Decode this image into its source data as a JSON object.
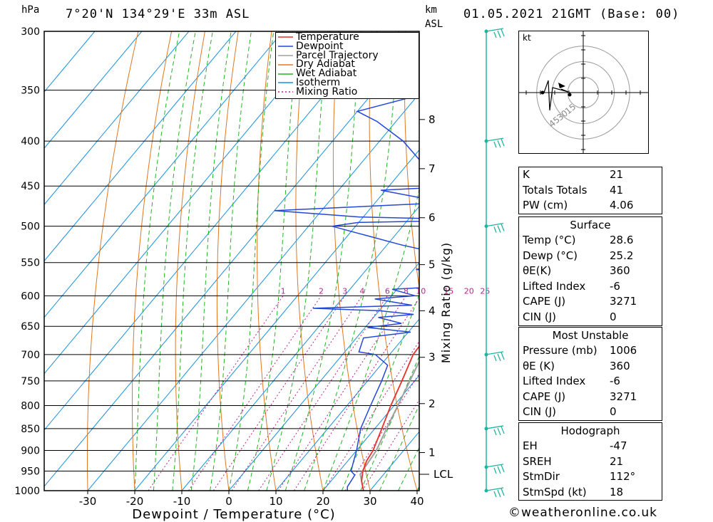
{
  "header": {
    "hpa_label": "hPa",
    "location": "7°20'N  134°29'E  33m  ASL",
    "km_label": "km",
    "asl_label": "ASL",
    "datetime": "01.05.2021  21GMT  (Base: 00)"
  },
  "chart_data": {
    "type": "skew-t log-p sounding",
    "ylabel_left": "hPa",
    "xlabel": "Dewpoint / Temperature (°C)",
    "ylabel_right": "Mixing Ratio (g/kg)",
    "pressure_ticks": [
      300,
      350,
      400,
      450,
      500,
      550,
      600,
      650,
      700,
      750,
      800,
      850,
      900,
      950,
      1000
    ],
    "temperature_ticks": [
      -30,
      -20,
      -10,
      0,
      10,
      20,
      30,
      40
    ],
    "height_ticks_km": [
      {
        "km": "1",
        "p": 905
      },
      {
        "km": "2",
        "p": 796
      },
      {
        "km": "3",
        "p": 705
      },
      {
        "km": "4",
        "p": 624
      },
      {
        "km": "5",
        "p": 553
      },
      {
        "km": "6",
        "p": 489
      },
      {
        "km": "7",
        "p": 430
      },
      {
        "km": "8",
        "p": 378
      }
    ],
    "lcl": {
      "label": "LCL",
      "p": 958
    },
    "mixing_ratio_labels": [
      "1",
      "2",
      "3",
      "4",
      "6",
      "8",
      "10",
      "15",
      "20",
      "25"
    ],
    "mixing_ratio_values": [
      1,
      2,
      3,
      4,
      6,
      8,
      10,
      15,
      20,
      25
    ],
    "legend": [
      "Temperature",
      "Dewpoint",
      "Parcel Trajectory",
      "Dry Adiabat",
      "Wet Adiabat",
      "Isotherm",
      "Mixing Ratio"
    ],
    "colors": {
      "temperature": "#e8302c",
      "dewpoint": "#2447d8",
      "parcel": "#a0a0a0",
      "dry_adiabat": "#e07820",
      "wet_adiabat": "#22b422",
      "isotherm": "#1890e0",
      "mixing_ratio": "#c0208c",
      "wind": "#20b4a0"
    },
    "temperature_profile": [
      [
        1000,
        28.6
      ],
      [
        975,
        26.5
      ],
      [
        950,
        25.0
      ],
      [
        925,
        24.0
      ],
      [
        900,
        23.5
      ],
      [
        850,
        21.5
      ],
      [
        800,
        19.3
      ],
      [
        750,
        17.3
      ],
      [
        700,
        15.0
      ],
      [
        680,
        14.8
      ],
      [
        660,
        13.5
      ],
      [
        640,
        13.8
      ],
      [
        620,
        13.0
      ],
      [
        600,
        11.0
      ],
      [
        580,
        9.8
      ],
      [
        560,
        8.2
      ],
      [
        540,
        6.6
      ],
      [
        520,
        6.0
      ],
      [
        500,
        5.0
      ],
      [
        480,
        3.2
      ],
      [
        460,
        1.8
      ],
      [
        440,
        0.0
      ],
      [
        420,
        -2.0
      ],
      [
        400,
        -4.0
      ],
      [
        380,
        -6.0
      ],
      [
        360,
        -7.5
      ]
    ],
    "dewpoint_profile": [
      [
        1000,
        25.2
      ],
      [
        990,
        24.5
      ],
      [
        960,
        24.0
      ],
      [
        950,
        22.5
      ],
      [
        930,
        21.5
      ],
      [
        900,
        20.0
      ],
      [
        850,
        17.0
      ],
      [
        800,
        15.0
      ],
      [
        750,
        13.0
      ],
      [
        720,
        11.5
      ],
      [
        700,
        7.0
      ],
      [
        695,
        3.0
      ],
      [
        670,
        1.5
      ],
      [
        660,
        10.5
      ],
      [
        652,
        0.5
      ],
      [
        645,
        7.0
      ],
      [
        635,
        1.0
      ],
      [
        630,
        8.0
      ],
      [
        624,
        0.0
      ],
      [
        620,
        -14.5
      ],
      [
        615,
        6.0
      ],
      [
        605,
        -3.0
      ],
      [
        600,
        5.0
      ],
      [
        590,
        -1.0
      ],
      [
        585,
        10.0
      ],
      [
        575,
        3.0
      ],
      [
        565,
        8.0
      ],
      [
        560,
        0.5
      ],
      [
        545,
        11.0
      ],
      [
        540,
        5.0
      ],
      [
        525,
        -7.0
      ],
      [
        500,
        -25.0
      ],
      [
        495,
        -20.0
      ],
      [
        492,
        7.0
      ],
      [
        488,
        -21.0
      ],
      [
        480,
        -40.0
      ],
      [
        470,
        -5.0
      ],
      [
        455,
        -21.0
      ],
      [
        450,
        -4.0
      ],
      [
        430,
        -15.0
      ],
      [
        400,
        -25.0
      ],
      [
        380,
        -34.0
      ],
      [
        370,
        -40.0
      ],
      [
        355,
        -30.0
      ],
      [
        340,
        -50.0
      ],
      [
        300,
        -65.0
      ]
    ],
    "parcel_profile": [
      [
        1000,
        28.6
      ],
      [
        958,
        25.0
      ],
      [
        900,
        24.2
      ],
      [
        850,
        22.5
      ],
      [
        800,
        20.8
      ],
      [
        750,
        19.0
      ],
      [
        700,
        17.0
      ],
      [
        650,
        15.0
      ],
      [
        600,
        12.5
      ],
      [
        550,
        9.8
      ],
      [
        500,
        6.8
      ],
      [
        450,
        3.2
      ],
      [
        400,
        -1.0
      ],
      [
        360,
        -5.0
      ]
    ],
    "wind_barb_levels_hpa": [
      1000,
      940,
      850,
      700,
      500,
      400,
      300
    ],
    "hodograph": {
      "unit_label": "kt",
      "ring_labels": [
        "15",
        "30",
        "45"
      ]
    }
  },
  "indices": {
    "top": [
      {
        "label": "K",
        "value": "21"
      },
      {
        "label": "Totals Totals",
        "value": "41"
      },
      {
        "label": "PW (cm)",
        "value": "4.06"
      }
    ],
    "surface": {
      "title": "Surface",
      "rows": [
        {
          "label": "Temp (°C)",
          "value": "28.6"
        },
        {
          "label": "Dewp (°C)",
          "value": "25.2"
        },
        {
          "label": "θE(K)",
          "value": "360"
        },
        {
          "label": "Lifted Index",
          "value": "-6"
        },
        {
          "label": "CAPE (J)",
          "value": "3271"
        },
        {
          "label": "CIN (J)",
          "value": "0"
        }
      ]
    },
    "most_unstable": {
      "title": "Most Unstable",
      "rows": [
        {
          "label": "Pressure (mb)",
          "value": "1006"
        },
        {
          "label": "θE (K)",
          "value": "360"
        },
        {
          "label": "Lifted Index",
          "value": "-6"
        },
        {
          "label": "CAPE (J)",
          "value": "3271"
        },
        {
          "label": "CIN (J)",
          "value": "0"
        }
      ]
    },
    "hodograph": {
      "title": "Hodograph",
      "rows": [
        {
          "label": "EH",
          "value": "-47"
        },
        {
          "label": "SREH",
          "value": "21"
        },
        {
          "label": "StmDir",
          "value": "112°"
        },
        {
          "label": "StmSpd (kt)",
          "value": "18"
        }
      ]
    }
  },
  "footer": {
    "copyright": "©weatheronline.co.uk"
  }
}
